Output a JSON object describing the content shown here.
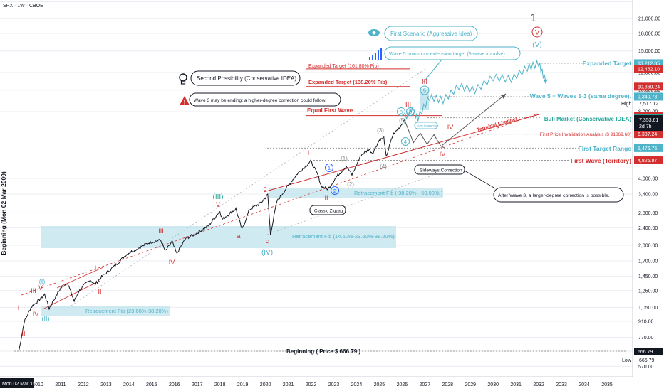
{
  "header": {
    "symbol_title": "SPX · 1W · CBOE"
  },
  "y_axis": {
    "ticks": [
      "25,000.00",
      "21,000.00",
      "18,000.00",
      "15,000.00",
      "12,000.00",
      "10,000.00",
      "8,000.00",
      "4,000.00",
      "3,400.00",
      "2,800.00",
      "2,400.00",
      "2,000.00",
      "1,700.00",
      "1,450.00",
      "1,250.00",
      "1,050.00",
      "910.00",
      "770.00",
      "666.79",
      "570.00"
    ],
    "tick_values": [
      25000,
      21000,
      18000,
      15000,
      12000,
      10000,
      8000,
      4000,
      3400,
      2800,
      2400,
      2000,
      1700,
      1450,
      1250,
      1050,
      910,
      770,
      666.79,
      570
    ],
    "vertical_label": "Beginning (Mon 02 Mar 2009)"
  },
  "x_axis": {
    "start_label": "Mon 02 Mar '09",
    "years": [
      "2010",
      "2011",
      "2012",
      "2013",
      "2014",
      "2015",
      "2016",
      "2017",
      "2018",
      "2019",
      "2020",
      "2021",
      "2022",
      "2023",
      "2024",
      "2025",
      "2026",
      "2027",
      "2028",
      "2029",
      "2030",
      "2031",
      "2032",
      "2033",
      "2034",
      "2035"
    ]
  },
  "price_badges": [
    {
      "text": "13,212.85",
      "color": "#4fb3c9",
      "value": 13212.85
    },
    {
      "text": "12,462.10",
      "color": "#d32f2f",
      "value": 12462.1
    },
    {
      "text": "10,369.24",
      "color": "#d32f2f",
      "value": 10369.24
    },
    {
      "text": "9,340.73",
      "color": "#4fb3c9",
      "value": 9340.73
    },
    {
      "text": "7,675.24",
      "color": "#d32f2f",
      "value": 7675.24
    },
    {
      "text": "7,503.39",
      "color": "#26a69a",
      "value": 7503.39
    },
    {
      "text": "6,337.24",
      "color": "#d32f2f",
      "value": 6337.24
    },
    {
      "text": "5,476.76",
      "color": "#4fb3c9",
      "value": 5476.76
    },
    {
      "text": "4,826.87",
      "color": "#d32f2f",
      "value": 4826.87
    }
  ],
  "high": {
    "label": "High",
    "value_text": "7,517.12"
  },
  "current": {
    "value_text": "7,353.61",
    "countdown": "2d 7h"
  },
  "low": {
    "label": "Low",
    "value_text": "666.79"
  },
  "labels": {
    "first_scenario": "First Scenario (Aggressive Idea)",
    "wave5_target": "Wave 5: minimum extension target (5-wave impulse).",
    "expanded_161": "Expanded Target (161.80% Fib)",
    "expanded_138": "Expanded Target (138.20% Fib)",
    "second_possibility": "Second Possibility (Conservative IDEA)",
    "wave3_ending": "Wave 3 may be ending; a higher-degree correction could follow.",
    "equal_first_wave": "Equal First Wave",
    "expanded_target_right": "Expanded Target",
    "wave5_equals": "Wave 5 = Waves 1-3 (same degree).",
    "bull_market": "Bull Market (Conservative IDEA)",
    "first_price_invalidation": "First Price Invalidation Analysis ($ 91869.60)",
    "first_target_range": "First Target Range",
    "first_wave_territory": "First Wave (Territory)",
    "terminal_channel": "Terminal Channel",
    "sideways_correction": "Sideways Correction",
    "after_wave3": "After Wave 3, a larger-degree correction is possible.",
    "classic_zigzag": "Classic Zigzag",
    "retr_fib_38_50": "Retracement Fib ( 38.20% - 50.00% )",
    "retr_fib_14_38": "Retracement Fib (14.60%-23.60%-38.20%)",
    "retr_fib_23_38": "Retracement Fib (23.60%-38.20%)",
    "beginning": "Beginning ( Price $ 666.79 )",
    "any_corrective": "Any Corrective"
  },
  "wave_labels": {
    "top_one": "1",
    "circ_V": "V",
    "paren_V": "(V)",
    "w_III_top": "III",
    "w_III_red": "III",
    "w_IV_a": "IV",
    "w_IV_b": "IV",
    "w_5_circ": "5",
    "w_3_circ": "3",
    "w_4_circ": "4",
    "w_5_paren": "(5)",
    "w_3_paren": "(3)",
    "w_4_paren": "(4)",
    "w_1_paren": "(1)",
    "w_2_paren": "(2)",
    "w_1_circ": "1",
    "w_2_circ": "2",
    "w_I": "I",
    "w_II": "II",
    "w_b": "b",
    "w_a": "a",
    "w_c": "c",
    "w_IV_paren": "(IV)",
    "w_III_paren": "(III)",
    "w_V_red": "V",
    "w_III_small": "III",
    "w_IV_small": "IV",
    "w_I_small": "I",
    "w_II_small": "II",
    "w_I_paren": "(I)",
    "w_II_paren": "(II)",
    "w_V_small": "V",
    "w_III_left": "III",
    "w_IV_left": "IV",
    "w_I_left": "I",
    "w_II_left": "II"
  },
  "colors": {
    "red": "#d32f2f",
    "teal": "#4fb3c9",
    "band": "#bfe3ec",
    "dark": "#131722",
    "grid": "#e9ecf2"
  },
  "chart_data": {
    "type": "line",
    "title": "SPX · 1W · CBOE",
    "y_scale": "log",
    "ylim": [
      560,
      26000
    ],
    "xlim": [
      2009.0,
      2035.8
    ],
    "series": [
      {
        "x": [
          2009.17,
          2009.4,
          2009.7,
          2010.0,
          2010.3,
          2010.5,
          2010.8,
          2011.0,
          2011.3,
          2011.6,
          2011.8,
          2012.0,
          2012.3,
          2012.5,
          2012.8,
          2013.0,
          2013.4,
          2013.8,
          2014.0,
          2014.5,
          2014.9,
          2015.4,
          2015.6,
          2015.9,
          2016.1,
          2016.5,
          2016.9,
          2017.5,
          2018.0,
          2018.1,
          2018.7,
          2018.97,
          2019.3,
          2019.8,
          2020.1,
          2020.22,
          2020.5,
          2020.9,
          2021.4,
          2021.99,
          2022.3,
          2022.45,
          2022.75,
          2023.1,
          2023.55,
          2023.8,
          2024.2,
          2024.55,
          2024.7,
          2025.0,
          2025.2,
          2025.3,
          2025.6,
          2025.9,
          2026.1
        ],
        "values": [
          666.79,
          900,
          1050,
          1120,
          1200,
          1040,
          1180,
          1280,
          1360,
          1120,
          1240,
          1310,
          1400,
          1330,
          1440,
          1500,
          1620,
          1780,
          1850,
          1960,
          2060,
          2110,
          1880,
          2080,
          1830,
          2150,
          2240,
          2450,
          2850,
          2620,
          2920,
          2350,
          2900,
          3100,
          3380,
          2240,
          3150,
          3600,
          4200,
          4780,
          4150,
          3700,
          3580,
          4050,
          4550,
          4150,
          5100,
          5400,
          5200,
          5950,
          6100,
          5000,
          6300,
          6800,
          7353.61
        ]
      }
    ],
    "projections": [
      {
        "name": "First Scenario (Aggressive Idea)",
        "x": [
          2026.1,
          2026.4,
          2026.7,
          2027.2,
          2027.8,
          2028.5,
          2029.2,
          2030.0,
          2030.8,
          2031.5,
          2032.0,
          2032.3
        ],
        "values": [
          7353.61,
          8200,
          7500,
          9300,
          9000,
          10400,
          10000,
          11400,
          11200,
          12600,
          13212.85,
          11000
        ]
      },
      {
        "name": "Second Possibility (Conservative IDEA)",
        "x": [
          2026.1,
          2026.5,
          2026.8,
          2027.1,
          2027.4,
          2027.7,
          2027.9
        ],
        "values": [
          7353.61,
          5800,
          6400,
          5700,
          6300,
          5600,
          5476.76
        ]
      }
    ]
  }
}
